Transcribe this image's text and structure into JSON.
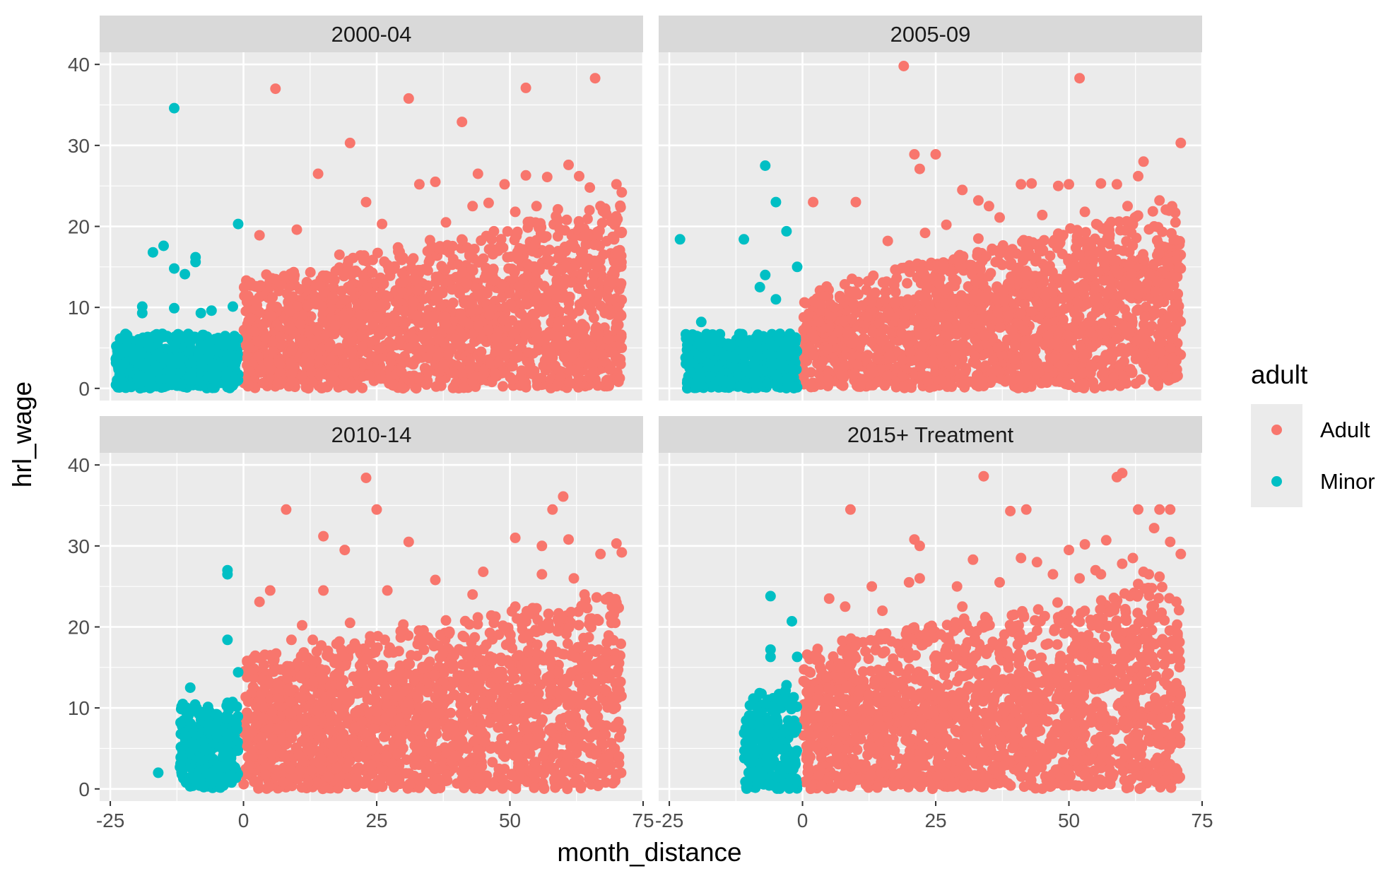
{
  "chart_data": {
    "type": "scatter",
    "xlabel": "month_distance",
    "ylabel": "hrl_wage",
    "xlim": [
      -27,
      75
    ],
    "ylim": [
      -1.5,
      41.5
    ],
    "x_ticks": [
      -25,
      0,
      25,
      50,
      75
    ],
    "x_tick_labels": [
      "-25",
      "0",
      "25",
      "50",
      "75"
    ],
    "y_ticks": [
      0,
      10,
      20,
      30,
      40
    ],
    "y_tick_labels": [
      "0",
      "10",
      "20",
      "30",
      "40"
    ],
    "grid": true,
    "legend": {
      "title": "adult",
      "position": "right",
      "entries": [
        {
          "label": "Adult",
          "color": "#F8766D"
        },
        {
          "label": "Minor",
          "color": "#00BFC4"
        }
      ]
    },
    "facets": [
      {
        "label": "2000-04",
        "series": [
          {
            "name": "Adult",
            "color": "#F8766D",
            "bulk": {
              "x_range": [
                0,
                71
              ],
              "y_range": [
                0,
                10
              ],
              "y_top_at_x_min": 10,
              "y_top_at_x_max": 17
            },
            "outliers": [
              [
                6,
                37
              ],
              [
                20,
                30.3
              ],
              [
                14,
                26.5
              ],
              [
                31,
                35.8
              ],
              [
                41,
                32.9
              ],
              [
                53,
                37.1
              ],
              [
                66,
                38.3
              ],
              [
                23,
                23
              ],
              [
                33,
                25.2
              ],
              [
                36,
                25.5
              ],
              [
                44,
                26.5
              ],
              [
                49,
                25.2
              ],
              [
                53,
                26.3
              ],
              [
                57,
                26.1
              ],
              [
                61,
                27.6
              ],
              [
                63,
                26.2
              ],
              [
                65,
                24.8
              ],
              [
                70,
                25.2
              ],
              [
                71,
                24.2
              ],
              [
                10,
                19.6
              ],
              [
                3,
                18.9
              ],
              [
                26,
                20.3
              ],
              [
                38,
                20.5
              ],
              [
                43,
                22.5
              ],
              [
                46,
                22.9
              ],
              [
                51,
                21.8
              ],
              [
                55,
                22.5
              ],
              [
                59,
                22.1
              ],
              [
                67,
                22.5
              ],
              [
                69,
                20.6
              ],
              [
                71,
                19.3
              ],
              [
                18,
                16.5
              ],
              [
                29,
                17.4
              ],
              [
                35,
                18.3
              ],
              [
                47,
                19.4
              ],
              [
                64,
                18.8
              ]
            ]
          },
          {
            "name": "Minor",
            "color": "#00BFC4",
            "bulk": {
              "x_range": [
                -24,
                -1
              ],
              "y_range": [
                0,
                5
              ]
            },
            "outliers": [
              [
                -13,
                34.6
              ],
              [
                -1,
                20.3
              ],
              [
                -15,
                17.6
              ],
              [
                -17,
                16.8
              ],
              [
                -9,
                16.2
              ],
              [
                -9,
                15.6
              ],
              [
                -13,
                14.8
              ],
              [
                -11,
                14.1
              ],
              [
                -19,
                10.1
              ],
              [
                -19,
                9.3
              ],
              [
                -13,
                9.9
              ],
              [
                -8,
                9.3
              ],
              [
                -6,
                9.6
              ],
              [
                -2,
                10.1
              ]
            ]
          }
        ]
      },
      {
        "label": "2005-09",
        "series": [
          {
            "name": "Adult",
            "color": "#F8766D",
            "bulk": {
              "x_range": [
                0,
                71
              ],
              "y_range": [
                0,
                9
              ],
              "y_top_at_x_min": 9,
              "y_top_at_x_max": 17
            },
            "outliers": [
              [
                19,
                39.8
              ],
              [
                52,
                38.3
              ],
              [
                21,
                28.9
              ],
              [
                25,
                28.9
              ],
              [
                22,
                27.1
              ],
              [
                71,
                30.3
              ],
              [
                64,
                28
              ],
              [
                2,
                23
              ],
              [
                10,
                23
              ],
              [
                30,
                24.5
              ],
              [
                33,
                23.2
              ],
              [
                35,
                22.5
              ],
              [
                41,
                25.2
              ],
              [
                43,
                25.3
              ],
              [
                48,
                25
              ],
              [
                50,
                25.2
              ],
              [
                56,
                25.3
              ],
              [
                59,
                25.2
              ],
              [
                63,
                26.2
              ],
              [
                67,
                23.2
              ],
              [
                70,
                20.5
              ],
              [
                27,
                20.2
              ],
              [
                37,
                21.1
              ],
              [
                45,
                21.4
              ],
              [
                53,
                21.8
              ],
              [
                61,
                22.5
              ],
              [
                66,
                20
              ],
              [
                16,
                18.2
              ],
              [
                23,
                19.2
              ],
              [
                33,
                18.5
              ],
              [
                48,
                19.1
              ],
              [
                57,
                19.6
              ]
            ]
          },
          {
            "name": "Minor",
            "color": "#00BFC4",
            "bulk": {
              "x_range": [
                -22,
                -1
              ],
              "y_range": [
                0,
                5
              ]
            },
            "outliers": [
              [
                -7,
                27.5
              ],
              [
                -5,
                23
              ],
              [
                -23,
                18.4
              ],
              [
                -11,
                18.4
              ],
              [
                -3,
                19.4
              ],
              [
                -1,
                15
              ],
              [
                -7,
                14
              ],
              [
                -8,
                12.5
              ],
              [
                -5,
                11
              ],
              [
                -19,
                8.2
              ]
            ]
          }
        ]
      },
      {
        "label": "2010-14",
        "series": [
          {
            "name": "Adult",
            "color": "#F8766D",
            "bulk": {
              "x_range": [
                0,
                71
              ],
              "y_range": [
                0,
                12
              ],
              "y_top_at_x_min": 12,
              "y_top_at_x_max": 18
            },
            "outliers": [
              [
                23,
                38.4
              ],
              [
                25,
                34.5
              ],
              [
                8,
                34.5
              ],
              [
                15,
                31.2
              ],
              [
                19,
                29.5
              ],
              [
                31,
                30.5
              ],
              [
                51,
                31
              ],
              [
                56,
                30
              ],
              [
                60,
                36.1
              ],
              [
                58,
                34.5
              ],
              [
                61,
                30.8
              ],
              [
                70,
                30.3
              ],
              [
                67,
                29
              ],
              [
                71,
                29.2
              ],
              [
                45,
                26.8
              ],
              [
                56,
                26.5
              ],
              [
                62,
                26
              ],
              [
                5,
                24.5
              ],
              [
                15,
                24.5
              ],
              [
                27,
                24.5
              ],
              [
                36,
                25.8
              ],
              [
                3,
                23.1
              ],
              [
                43,
                24
              ],
              [
                64,
                24
              ],
              [
                70,
                23
              ],
              [
                9,
                18.4
              ],
              [
                13,
                18.4
              ],
              [
                18,
                18.2
              ],
              [
                11,
                20.2
              ],
              [
                20,
                20.5
              ],
              [
                30,
                20.3
              ],
              [
                38,
                20.8
              ],
              [
                47,
                20.5
              ],
              [
                51,
                22.5
              ],
              [
                55,
                22.3
              ],
              [
                59,
                21
              ],
              [
                65,
                21
              ]
            ]
          },
          {
            "name": "Minor",
            "color": "#00BFC4",
            "bulk": {
              "x_range": [
                -12,
                -1
              ],
              "y_range": [
                0,
                8
              ]
            },
            "outliers": [
              [
                -3,
                27
              ],
              [
                -3,
                26.5
              ],
              [
                -3,
                18.4
              ],
              [
                -1,
                14.4
              ],
              [
                -10,
                12.5
              ],
              [
                -16,
                2
              ]
            ]
          }
        ]
      },
      {
        "label": "2015+ Treatment",
        "series": [
          {
            "name": "Adult",
            "color": "#F8766D",
            "bulk": {
              "x_range": [
                0,
                71
              ],
              "y_range": [
                0,
                13
              ],
              "y_top_at_x_min": 13,
              "y_top_at_x_max": 19
            },
            "outliers": [
              [
                34,
                38.6
              ],
              [
                60,
                39
              ],
              [
                59,
                38.5
              ],
              [
                9,
                34.5
              ],
              [
                39,
                34.3
              ],
              [
                42,
                34.5
              ],
              [
                63,
                34.5
              ],
              [
                67,
                34.5
              ],
              [
                69,
                34.5
              ],
              [
                66,
                32.2
              ],
              [
                69,
                30.5
              ],
              [
                71,
                29
              ],
              [
                21,
                30.8
              ],
              [
                22,
                30
              ],
              [
                32,
                28.3
              ],
              [
                41,
                28.5
              ],
              [
                44,
                28
              ],
              [
                50,
                29.5
              ],
              [
                53,
                30.2
              ],
              [
                57,
                30.7
              ],
              [
                62,
                28.5
              ],
              [
                56,
                26.5
              ],
              [
                60,
                27.8
              ],
              [
                64,
                26.8
              ],
              [
                13,
                25
              ],
              [
                20,
                25.5
              ],
              [
                22,
                26
              ],
              [
                29,
                25
              ],
              [
                37,
                25.5
              ],
              [
                47,
                26.5
              ],
              [
                52,
                26
              ],
              [
                55,
                27
              ],
              [
                65,
                26.5
              ],
              [
                67,
                26.2
              ],
              [
                5,
                23.5
              ],
              [
                8,
                22.5
              ],
              [
                15,
                22
              ],
              [
                30,
                22.5
              ],
              [
                63,
                25.3
              ]
            ]
          },
          {
            "name": "Minor",
            "color": "#00BFC4",
            "bulk": {
              "x_range": [
                -11,
                -1
              ],
              "y_range": [
                0,
                9
              ]
            },
            "outliers": [
              [
                -6,
                23.8
              ],
              [
                -2,
                20.7
              ],
              [
                -6,
                17.2
              ],
              [
                -6,
                16.3
              ],
              [
                -1,
                16.3
              ],
              [
                -3,
                12.8
              ],
              [
                -7,
                10.5
              ],
              [
                -10,
                9
              ]
            ]
          }
        ]
      }
    ]
  }
}
